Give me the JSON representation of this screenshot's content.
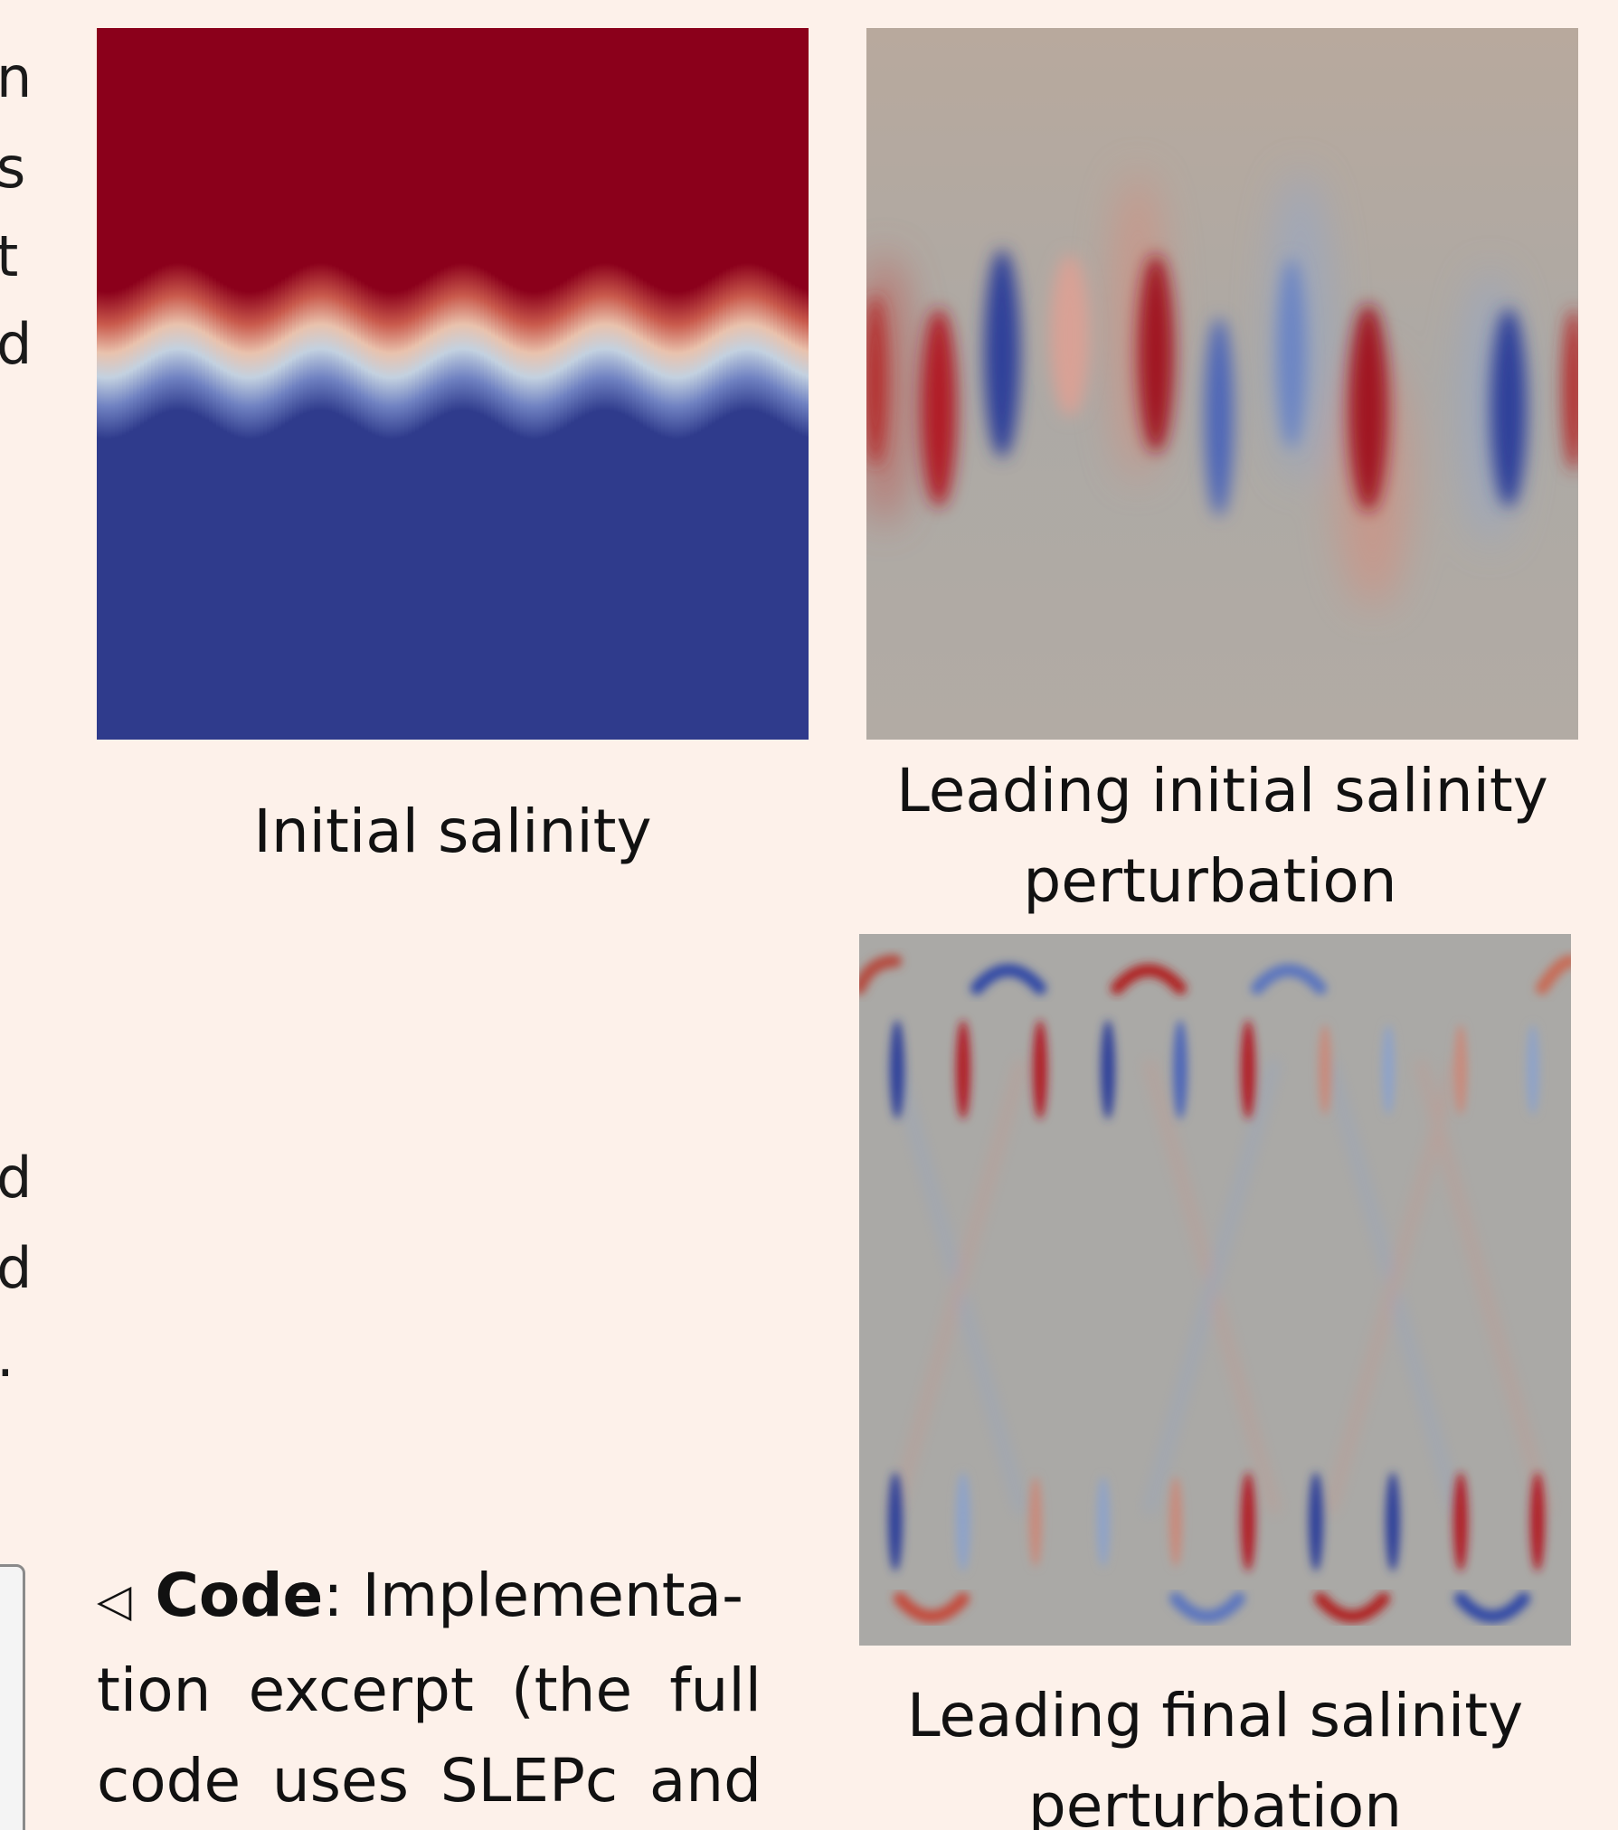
{
  "left_column_fragments": [
    "n",
    "s",
    "t",
    "d",
    "d",
    "d",
    "."
  ],
  "figures": {
    "initial_salinity": {
      "caption": "Initial salinity"
    },
    "leading_initial": {
      "caption_line1": "Leading initial salinity",
      "caption_line2": "perturbation"
    },
    "leading_final": {
      "caption_line1": "Leading final salinity",
      "caption_line2": "perturbation"
    }
  },
  "code_note": {
    "marker": "◁",
    "label": "Code",
    "text_line1": ":  Implementa-",
    "text_line2": "tion excerpt (the full",
    "text_line3": "code uses SLEPc and"
  },
  "colors": {
    "background": "#fdf1ea",
    "salinity_high": "#8b001b",
    "salinity_low": "#2f3b8c",
    "perturbation_neutral": "#ada9a2"
  }
}
